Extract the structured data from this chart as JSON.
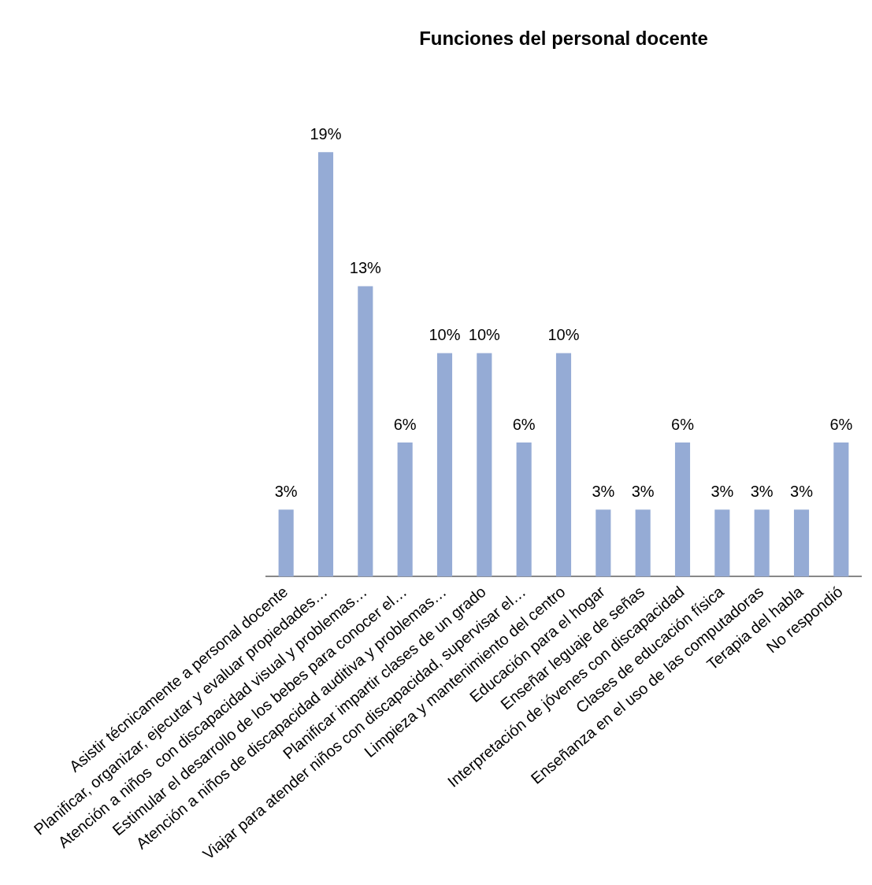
{
  "chart_data": {
    "type": "bar",
    "title": "Funciones del personal docente",
    "categories": [
      "Asistir técnicamente a personal docente",
      "Planificar, organizar, ejecutar y evaluar propiedades…",
      "Atención a niños  con discapacidad visual y problemas…",
      "Estimular el desarrollo de los bebes para conocer el…",
      "Atención a niños de discapacidad auditiva y problemas…",
      "Planificar impartir clases de un grado",
      "Viajar para atender niños con discapacidad, supervisar el…",
      "Limpieza y mantenimiento del centro",
      "Educación para el hogar",
      "Enseñar leguaje de señas",
      "Interpretación de jóvenes con discapacidad",
      "Clases de educación física",
      "Enseñanza en el uso de las computadoras",
      "Terapia del habla",
      "No respondió"
    ],
    "values": [
      3,
      19,
      13,
      6,
      10,
      10,
      6,
      10,
      3,
      3,
      6,
      3,
      3,
      3,
      6
    ],
    "value_labels": [
      "3%",
      "19%",
      "13%",
      "6%",
      "10%",
      "10%",
      "6%",
      "10%",
      "3%",
      "3%",
      "6%",
      "3%",
      "3%",
      "3%",
      "6%"
    ],
    "color": "#95abd5",
    "grid": false,
    "legend": false,
    "tick_labels": "x"
  }
}
